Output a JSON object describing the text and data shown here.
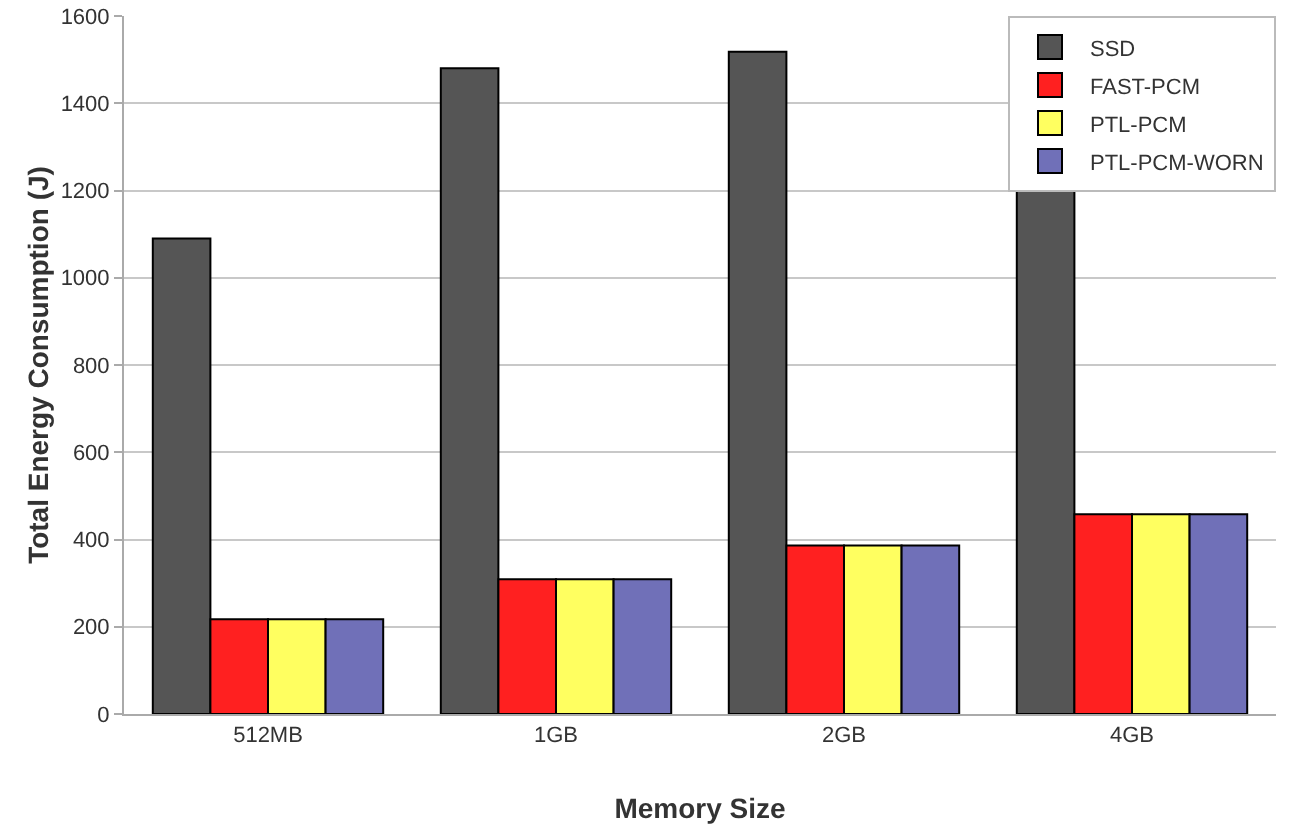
{
  "chart_data": {
    "type": "bar",
    "xlabel": "Memory Size",
    "ylabel": "Total Energy Consumption (J)",
    "categories": [
      "512MB",
      "1GB",
      "2GB",
      "4GB"
    ],
    "series": [
      {
        "name": "SSD",
        "color": "#555555",
        "values": [
          1090,
          1480,
          1518,
          1206
        ]
      },
      {
        "name": "FAST-PCM",
        "color": "#ff2020",
        "values": [
          217,
          309,
          386,
          458
        ]
      },
      {
        "name": "PTL-PCM",
        "color": "#ffff60",
        "values": [
          217,
          309,
          386,
          458
        ]
      },
      {
        "name": "PTL-PCM-WORN",
        "color": "#7070b8",
        "values": [
          217,
          309,
          386,
          458
        ]
      }
    ],
    "ylim": [
      0,
      1600
    ],
    "yticks": [
      0,
      200,
      400,
      600,
      800,
      1000,
      1200,
      1400,
      1600
    ],
    "grid": "y",
    "legend": "top right"
  }
}
